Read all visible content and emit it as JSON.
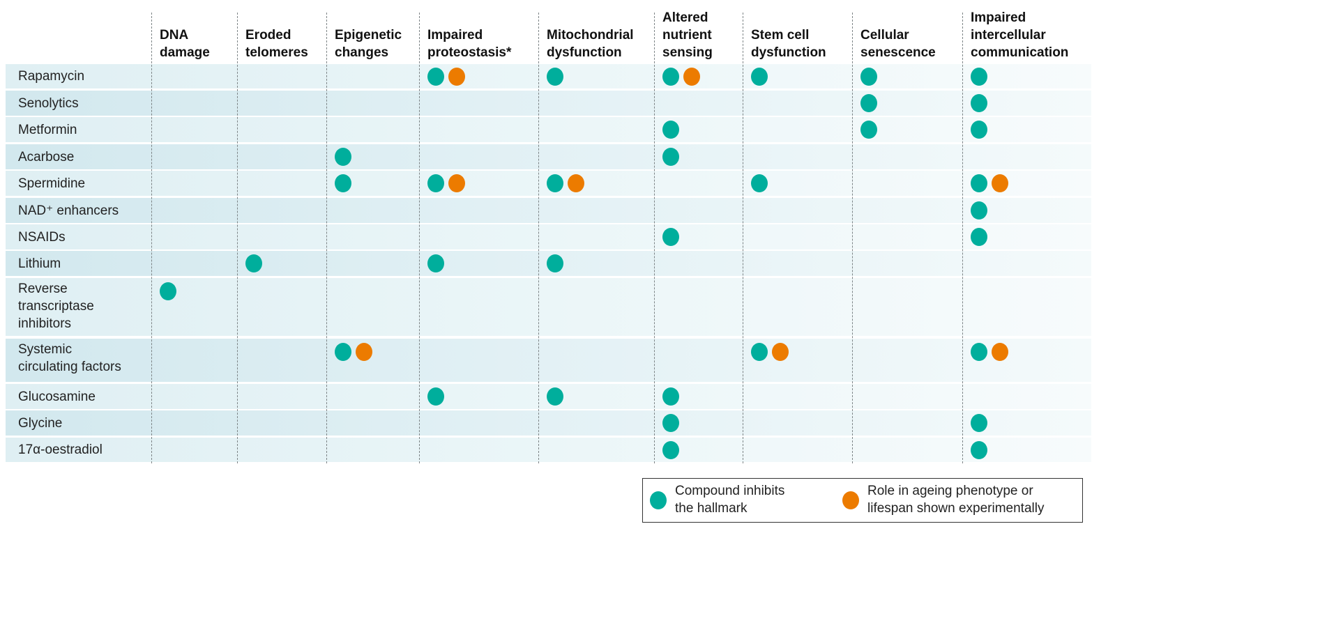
{
  "colors": {
    "inhibits": "#00ae9c",
    "role": "#ec7b00"
  },
  "columns": [
    [
      "DNA",
      "damage"
    ],
    [
      "Eroded",
      "telomeres"
    ],
    [
      "Epigenetic",
      "changes"
    ],
    [
      "Impaired",
      "proteostasis*"
    ],
    [
      "Mitochondrial",
      "dysfunction"
    ],
    [
      "Altered",
      "nutrient",
      "sensing"
    ],
    [
      "Stem cell dysfunction"
    ],
    [
      "Cellular",
      "senescence"
    ],
    [
      "Impaired",
      "intercellular",
      "communication"
    ]
  ],
  "rows": [
    {
      "label": [
        "Rapamycin"
      ],
      "cells": [
        "",
        "",
        "",
        "io",
        "i",
        "io",
        "i",
        "i",
        "i"
      ]
    },
    {
      "label": [
        "Senolytics"
      ],
      "cells": [
        "",
        "",
        "",
        "",
        "",
        "",
        "",
        "i",
        "i"
      ]
    },
    {
      "label": [
        "Metformin"
      ],
      "cells": [
        "",
        "",
        "",
        "",
        "",
        "i",
        "",
        "i",
        "i"
      ]
    },
    {
      "label": [
        "Acarbose"
      ],
      "cells": [
        "",
        "",
        "i",
        "",
        "",
        "i",
        "",
        "",
        ""
      ]
    },
    {
      "label": [
        "Spermidine"
      ],
      "cells": [
        "",
        "",
        "i",
        "io",
        "io",
        "",
        "i",
        "",
        "io"
      ]
    },
    {
      "label": [
        "NAD⁺ enhancers"
      ],
      "cells": [
        "",
        "",
        "",
        "",
        "",
        "",
        "",
        "",
        "i"
      ]
    },
    {
      "label": [
        "NSAIDs"
      ],
      "cells": [
        "",
        "",
        "",
        "",
        "",
        "i",
        "",
        "",
        "i"
      ]
    },
    {
      "label": [
        "Lithium"
      ],
      "cells": [
        "",
        "i",
        "",
        "i",
        "i",
        "",
        "",
        "",
        ""
      ]
    },
    {
      "label": [
        "Reverse",
        "transcriptase",
        "inhibitors"
      ],
      "cells": [
        "i",
        "",
        "",
        "",
        "",
        "",
        "",
        "",
        ""
      ]
    },
    {
      "label": [
        "Systemic",
        "circulating factors"
      ],
      "cells": [
        "",
        "",
        "io",
        "",
        "",
        "",
        "io",
        "",
        "io"
      ]
    },
    {
      "label": [
        "Glucosamine"
      ],
      "cells": [
        "",
        "",
        "",
        "i",
        "i",
        "i",
        "",
        "",
        ""
      ]
    },
    {
      "label": [
        "Glycine"
      ],
      "cells": [
        "",
        "",
        "",
        "",
        "",
        "i",
        "",
        "",
        "i"
      ]
    },
    {
      "label": [
        "17α-oestradiol"
      ],
      "cells": [
        "",
        "",
        "",
        "",
        "",
        "i",
        "",
        "",
        "i"
      ]
    }
  ],
  "legend": {
    "inhibits": [
      "Compound inhibits",
      "the hallmark"
    ],
    "role": [
      "Role in ageing phenotype or",
      "lifespan shown experimentally"
    ]
  }
}
